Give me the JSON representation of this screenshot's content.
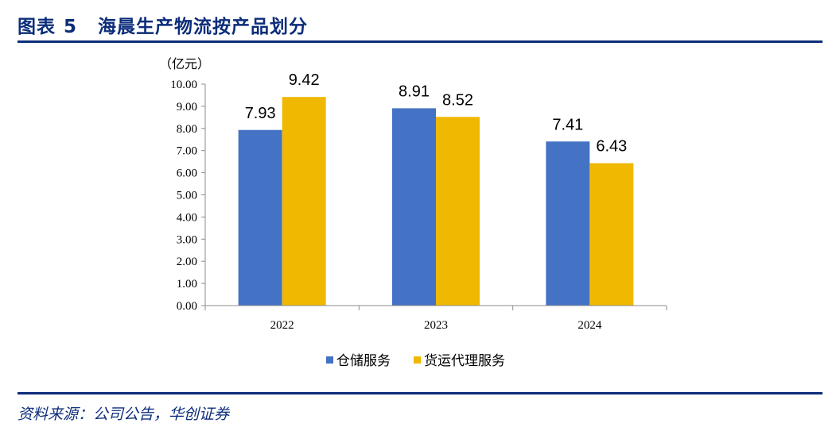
{
  "figure": {
    "label": "图表",
    "number": "5",
    "title": "海晨生产物流按产品划分",
    "source": "资料来源：公司公告，华创证券"
  },
  "chart_data": {
    "type": "bar",
    "unit": "（亿元）",
    "categories": [
      "2022",
      "2023",
      "2024"
    ],
    "series": [
      {
        "name": "仓储服务",
        "values": [
          7.93,
          8.91,
          7.41
        ],
        "labels": [
          "7.93",
          "8.91",
          "7.41"
        ],
        "color": "#4472c4"
      },
      {
        "name": "货运代理服务",
        "values": [
          9.42,
          8.52,
          6.43
        ],
        "labels": [
          "9.42",
          "8.52",
          "6.43"
        ],
        "color": "#f0b800"
      }
    ],
    "ylim": [
      0,
      10
    ],
    "yticks": [
      "0.00",
      "1.00",
      "2.00",
      "3.00",
      "4.00",
      "5.00",
      "6.00",
      "7.00",
      "8.00",
      "9.00",
      "10.00"
    ],
    "legend_position": "bottom",
    "grid": false
  }
}
